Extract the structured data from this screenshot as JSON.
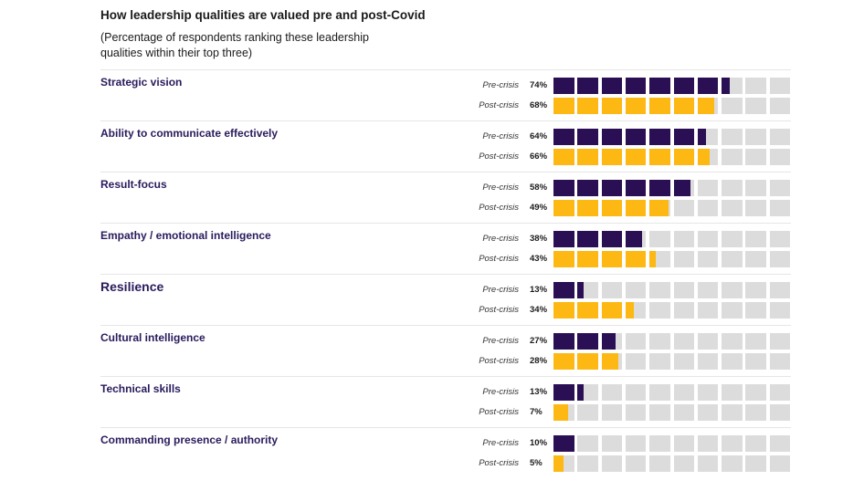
{
  "title": "How leadership qualities are valued pre and post-Covid",
  "subtitle": "(Percentage of respondents ranking these leadership qualities within their top three)",
  "colors": {
    "pre": "#2a0f55",
    "post": "#fdb813",
    "empty": "#dcdcdc"
  },
  "chart_data": {
    "type": "bar",
    "title": "How leadership qualities are valued pre and post-Covid",
    "subtitle": "(Percentage of respondents ranking these leadership qualities within their top three)",
    "series_labels": [
      "Pre-crisis",
      "Post-crisis"
    ],
    "rows": [
      {
        "category": "Strategic vision",
        "pre": 74,
        "post": 68,
        "pre_label": "74%",
        "post_label": "68%"
      },
      {
        "category": "Ability to communicate effectively",
        "pre": 64,
        "post": 66,
        "pre_label": "64%",
        "post_label": "66%"
      },
      {
        "category": "Result-focus",
        "pre": 58,
        "post": 49,
        "pre_label": "58%",
        "post_label": "49%"
      },
      {
        "category": "Empathy / emotional intelligence",
        "pre": 38,
        "post": 43,
        "pre_label": "38%",
        "post_label": "43%"
      },
      {
        "category": "Resilience",
        "pre": 13,
        "post": 34,
        "pre_label": "13%",
        "post_label": "34%",
        "emphasis": true
      },
      {
        "category": "Cultural intelligence",
        "pre": 27,
        "post": 28,
        "pre_label": "27%",
        "post_label": "28%"
      },
      {
        "category": "Technical skills",
        "pre": 13,
        "post": 7,
        "pre_label": "13%",
        "post_label": "7%"
      },
      {
        "category": "Commanding presence / authority",
        "pre": 10,
        "post": 5,
        "pre_label": "10%",
        "post_label": "5%"
      }
    ],
    "ylim": [
      0,
      100
    ]
  }
}
